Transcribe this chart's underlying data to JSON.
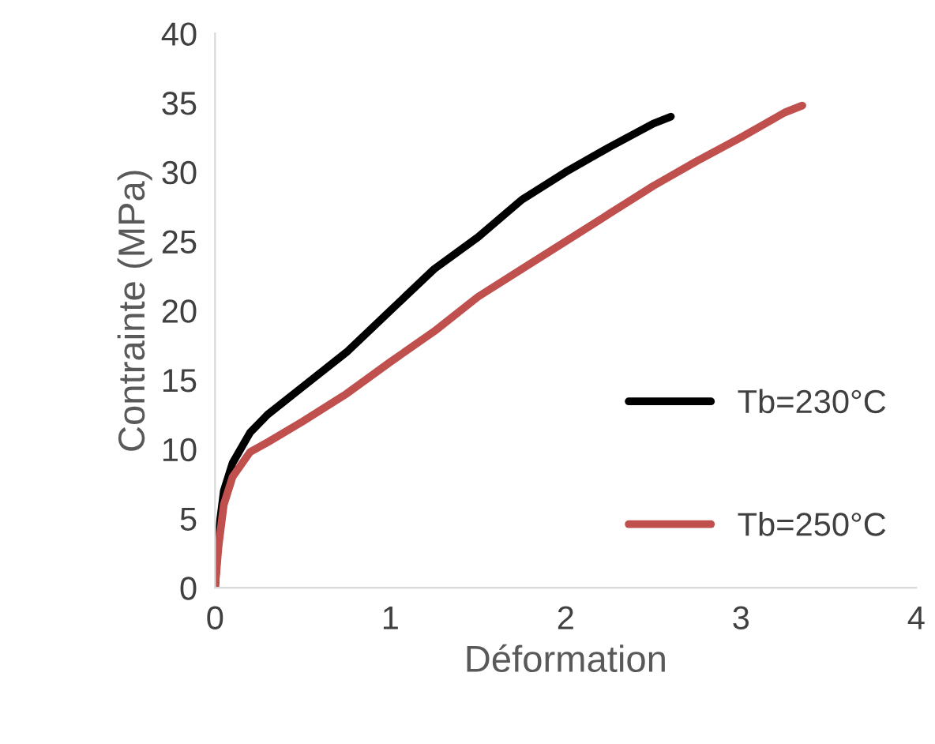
{
  "chart_data": {
    "type": "line",
    "xlabel": "Déformation",
    "ylabel": "Contrainte (MPa)",
    "xlim": [
      0,
      4
    ],
    "xticks": [
      0,
      1,
      2,
      3,
      4
    ],
    "ylim": [
      0,
      40
    ],
    "yticks": [
      0,
      5,
      10,
      15,
      20,
      25,
      30,
      35,
      40
    ],
    "grid": false,
    "legend": "right",
    "marker": "none",
    "line_style": "solid",
    "series": [
      {
        "name": "Tb=230°C",
        "color": "#000000",
        "x": [
          0,
          0.02,
          0.05,
          0.1,
          0.2,
          0.3,
          0.5,
          0.75,
          1.0,
          1.25,
          1.5,
          1.75,
          2.0,
          2.25,
          2.5,
          2.6
        ],
        "values": [
          0,
          4,
          7,
          9,
          11.2,
          12.5,
          14.5,
          17,
          20,
          23,
          25.3,
          28,
          30,
          31.8,
          33.5,
          34
        ]
      },
      {
        "name": "Tb=250°C",
        "color": "#c0504d",
        "x": [
          0,
          0.02,
          0.05,
          0.1,
          0.2,
          0.3,
          0.5,
          0.75,
          1.0,
          1.25,
          1.5,
          1.75,
          2.0,
          2.25,
          2.5,
          2.75,
          3.0,
          3.25,
          3.35
        ],
        "values": [
          0,
          3,
          6,
          8,
          9.8,
          10.5,
          12,
          14,
          16.3,
          18.5,
          21,
          23,
          25,
          27,
          29,
          30.8,
          32.5,
          34.3,
          34.8
        ]
      }
    ]
  }
}
